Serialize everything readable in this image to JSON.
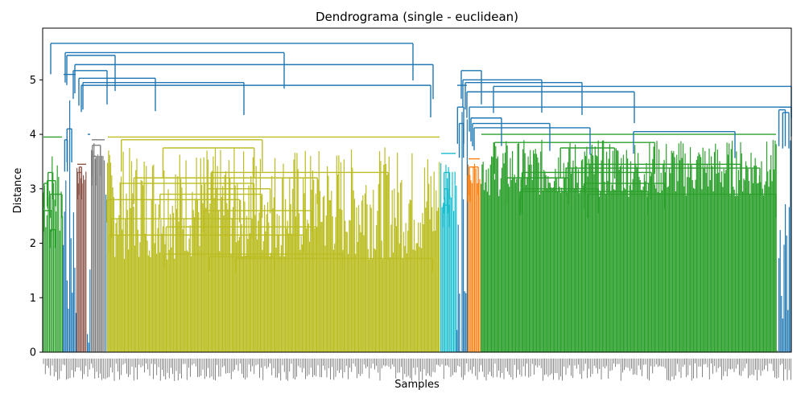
{
  "chart_data": {
    "type": "dendrogram",
    "title": "Dendrograma (single - euclidean)",
    "xlabel": "Samples",
    "ylabel": "Distance",
    "ylim": [
      0,
      5.95
    ],
    "y_ticks": [
      0,
      1,
      2,
      3,
      4,
      5
    ],
    "grid": false,
    "legend": "none",
    "leaf_count_approx": 930,
    "link_color": "#1f77b4",
    "clusters": [
      {
        "color": "#2ca02c",
        "x_range": [
          0,
          25
        ],
        "merge_height": 3.95,
        "min_height": 2.1,
        "inner_heights": [
          3.3,
          3.15,
          3.1,
          2.9,
          2.6,
          2.25
        ]
      },
      {
        "color": "#1f77b4",
        "x_range": [
          25,
          42
        ],
        "merge_height": 5.1,
        "min_height": 0,
        "inner_heights": [
          4.1,
          3.9
        ]
      },
      {
        "color": "#8c564b",
        "x_range": [
          42,
          55
        ],
        "merge_height": 3.45,
        "min_height": 3.0,
        "inner_heights": [
          3.4,
          3.3
        ]
      },
      {
        "color": "#1f77b4",
        "x_range": [
          55,
          60
        ],
        "merge_height": 4.0,
        "min_height": 0,
        "inner_heights": []
      },
      {
        "color": "#7f7f7f",
        "x_range": [
          60,
          78
        ],
        "merge_height": 3.9,
        "min_height": 3.4,
        "inner_heights": [
          3.8,
          3.6
        ]
      },
      {
        "color": "#1f77b4",
        "x_range": [
          78,
          80
        ],
        "merge_height": 4.1,
        "min_height": 0,
        "inner_heights": []
      },
      {
        "color": "#bcbd22",
        "x_range": [
          80,
          494
        ],
        "merge_height": 3.95,
        "min_height": 1.7,
        "inner_heights": [
          3.9,
          3.75,
          3.3,
          3.2,
          3.1,
          3.0,
          2.9,
          2.8,
          2.6,
          2.45,
          2.3,
          2.15,
          1.8,
          1.75,
          1.72
        ]
      },
      {
        "color": "#17becf",
        "x_range": [
          494,
          514
        ],
        "merge_height": 3.65,
        "min_height": 2.4,
        "inner_heights": [
          3.3,
          3.0,
          2.7
        ]
      },
      {
        "color": "#1f77b4",
        "x_range": [
          514,
          528
        ],
        "merge_height": 4.9,
        "min_height": 0,
        "inner_heights": [
          4.5,
          4.2
        ]
      },
      {
        "color": "#ff7f0e",
        "x_range": [
          528,
          544
        ],
        "merge_height": 3.55,
        "min_height": 3.1,
        "inner_heights": [
          3.4,
          3.25
        ]
      },
      {
        "color": "#2ca02c",
        "x_range": [
          544,
          912
        ],
        "merge_height": 4.0,
        "min_height": 2.85,
        "inner_heights": [
          3.85,
          3.75,
          3.45,
          3.38,
          3.3,
          3.2,
          3.1,
          3.0,
          2.95,
          2.9
        ]
      },
      {
        "color": "#7f7f7f",
        "x_range": [
          912,
          914
        ],
        "merge_height": 4.4,
        "min_height": 0,
        "inner_heights": []
      },
      {
        "color": "#1f77b4",
        "x_range": [
          914,
          930
        ],
        "merge_height": 4.5,
        "min_height": 0,
        "inner_heights": [
          4.45,
          4.4
        ]
      }
    ],
    "top_links": [
      {
        "height": 5.67,
        "x": [
          10,
          460
        ]
      },
      {
        "height": 5.5,
        "x": [
          28,
          300
        ]
      },
      {
        "height": 5.45,
        "x": [
          30,
          90
        ]
      },
      {
        "height": 5.28,
        "x": [
          40,
          485
        ]
      },
      {
        "height": 5.17,
        "x": [
          38,
          80
        ]
      },
      {
        "height": 5.03,
        "x": [
          45,
          140
        ]
      },
      {
        "height": 4.95,
        "x": [
          50,
          250
        ]
      },
      {
        "height": 4.9,
        "x": [
          48,
          482
        ]
      },
      {
        "height": 5.17,
        "x": [
          520,
          545
        ]
      },
      {
        "height": 5.0,
        "x": [
          522,
          620
        ]
      },
      {
        "height": 4.95,
        "x": [
          525,
          670
        ]
      },
      {
        "height": 4.88,
        "x": [
          560,
          930
        ]
      },
      {
        "height": 4.78,
        "x": [
          527,
          735
        ]
      },
      {
        "height": 4.5,
        "x": [
          530,
          930
        ]
      },
      {
        "height": 4.3,
        "x": [
          532,
          570
        ]
      },
      {
        "height": 4.2,
        "x": [
          534,
          630
        ]
      },
      {
        "height": 4.12,
        "x": [
          536,
          680
        ]
      },
      {
        "height": 4.05,
        "x": [
          734,
          860
        ]
      }
    ]
  }
}
